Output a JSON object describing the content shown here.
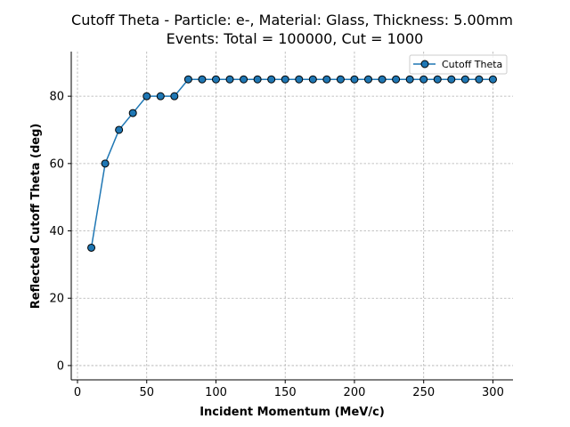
{
  "chart_data": {
    "type": "line",
    "title": "Cutoff Theta - Particle: e-, Material: Glass, Thickness: 5.00mm",
    "subtitle": "Events: Total = 100000, Cut = 1000",
    "xlabel": "Incident Momentum (MeV/c)",
    "ylabel": "Reflected Cutoff Theta (deg)",
    "xlim": [
      -4.5,
      314.5
    ],
    "ylim": [
      -4.25,
      93.25
    ],
    "xticks": [
      0,
      50,
      100,
      150,
      200,
      250,
      300
    ],
    "yticks": [
      0,
      20,
      40,
      60,
      80
    ],
    "grid": true,
    "legend_position": "top-right",
    "series": [
      {
        "name": "Cutoff Theta",
        "color": "#1f77b4",
        "marker": "circle",
        "x": [
          10,
          20,
          30,
          40,
          50,
          60,
          70,
          80,
          90,
          100,
          110,
          120,
          130,
          140,
          150,
          160,
          170,
          180,
          190,
          200,
          210,
          220,
          230,
          240,
          250,
          260,
          270,
          280,
          290,
          300
        ],
        "y": [
          35,
          60,
          70,
          75,
          80,
          80,
          80,
          85,
          85,
          85,
          85,
          85,
          85,
          85,
          85,
          85,
          85,
          85,
          85,
          85,
          85,
          85,
          85,
          85,
          85,
          85,
          85,
          85,
          85,
          85
        ]
      }
    ]
  }
}
